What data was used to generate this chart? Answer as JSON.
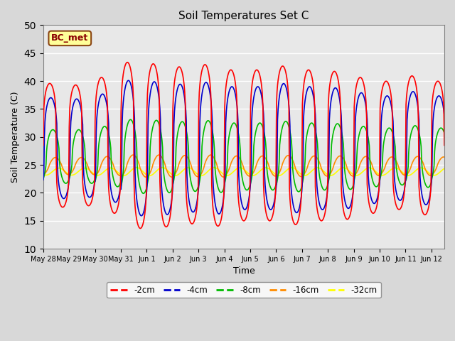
{
  "title": "Soil Temperatures Set C",
  "xlabel": "Time",
  "ylabel": "Soil Temperature (C)",
  "ylim": [
    10,
    50
  ],
  "yticks": [
    10,
    15,
    20,
    25,
    30,
    35,
    40,
    45,
    50
  ],
  "annotation": "BC_met",
  "series_colors": {
    "-2cm": "#FF0000",
    "-4cm": "#0000CC",
    "-8cm": "#00BB00",
    "-16cm": "#FF8C00",
    "-32cm": "#FFFF00"
  },
  "fig_facecolor": "#D8D8D8",
  "ax_facecolor": "#E8E8E8",
  "grid_color": "#FFFFFF",
  "num_days": 15.5,
  "samples_per_day": 48,
  "x_tick_labels": [
    "May 28",
    "May 29",
    "May 30",
    "May 31",
    "Jun 1",
    "Jun 2",
    "Jun 3",
    "Jun 4",
    "Jun 5",
    "Jun 6",
    "Jun 7",
    "Jun 8",
    "Jun 9",
    "Jun 10",
    "Jun 11",
    "Jun 12"
  ],
  "mean_2cm": 28.5,
  "mean_4cm": 28.0,
  "mean_8cm": 26.5,
  "mean_16cm": 24.8,
  "mean_32cm": 23.8,
  "amp_2cm": 13.5,
  "amp_4cm": 11.0,
  "amp_8cm": 6.0,
  "amp_16cm": 1.8,
  "amp_32cm": 0.7,
  "phase_2cm": 0.0,
  "phase_4cm": 0.04,
  "phase_8cm": 0.12,
  "phase_16cm": 0.22,
  "phase_32cm": 0.35,
  "sharpness_2cm": 4.0,
  "sharpness_4cm": 3.0,
  "sharpness_8cm": 2.0,
  "sharpness_16cm": 1.2,
  "sharpness_32cm": 1.0
}
